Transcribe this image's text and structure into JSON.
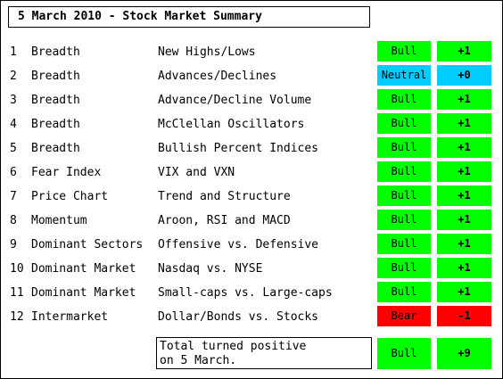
{
  "title": "5 March 2010 - Stock Market Summary",
  "colors": {
    "bull": "#00ff00",
    "neutral": "#00ccff",
    "bear": "#ff0000"
  },
  "rows": [
    {
      "num": "1",
      "category": "Breadth",
      "indicator": "New Highs/Lows",
      "signal": "Bull",
      "score": "+1"
    },
    {
      "num": "2",
      "category": "Breadth",
      "indicator": "Advances/Declines",
      "signal": "Neutral",
      "score": "+0"
    },
    {
      "num": "3",
      "category": "Breadth",
      "indicator": "Advance/Decline Volume",
      "signal": "Bull",
      "score": "+1"
    },
    {
      "num": "4",
      "category": "Breadth",
      "indicator": "McClellan Oscillators",
      "signal": "Bull",
      "score": "+1"
    },
    {
      "num": "5",
      "category": "Breadth",
      "indicator": "Bullish Percent Indices",
      "signal": "Bull",
      "score": "+1"
    },
    {
      "num": "6",
      "category": "Fear Index",
      "indicator": "VIX and VXN",
      "signal": "Bull",
      "score": "+1"
    },
    {
      "num": "7",
      "category": "Price Chart",
      "indicator": "Trend and Structure",
      "signal": "Bull",
      "score": "+1"
    },
    {
      "num": "8",
      "category": "Momentum",
      "indicator": "Aroon, RSI and MACD",
      "signal": "Bull",
      "score": "+1"
    },
    {
      "num": "9",
      "category": "Dominant Sectors",
      "indicator": "Offensive vs. Defensive",
      "signal": "Bull",
      "score": "+1"
    },
    {
      "num": "10",
      "category": "Dominant Market",
      "indicator": "Nasdaq vs. NYSE",
      "signal": "Bull",
      "score": "+1"
    },
    {
      "num": "11",
      "category": "Dominant Market",
      "indicator": "Small-caps vs. Large-caps",
      "signal": "Bull",
      "score": "+1"
    },
    {
      "num": "12",
      "category": "Intermarket",
      "indicator": "Dollar/Bonds vs. Stocks",
      "signal": "Bear",
      "score": "-1"
    }
  ],
  "summary": {
    "line1": "Total turned positive",
    "line2": "on 5 March.",
    "signal": "Bull",
    "score": "+9"
  }
}
